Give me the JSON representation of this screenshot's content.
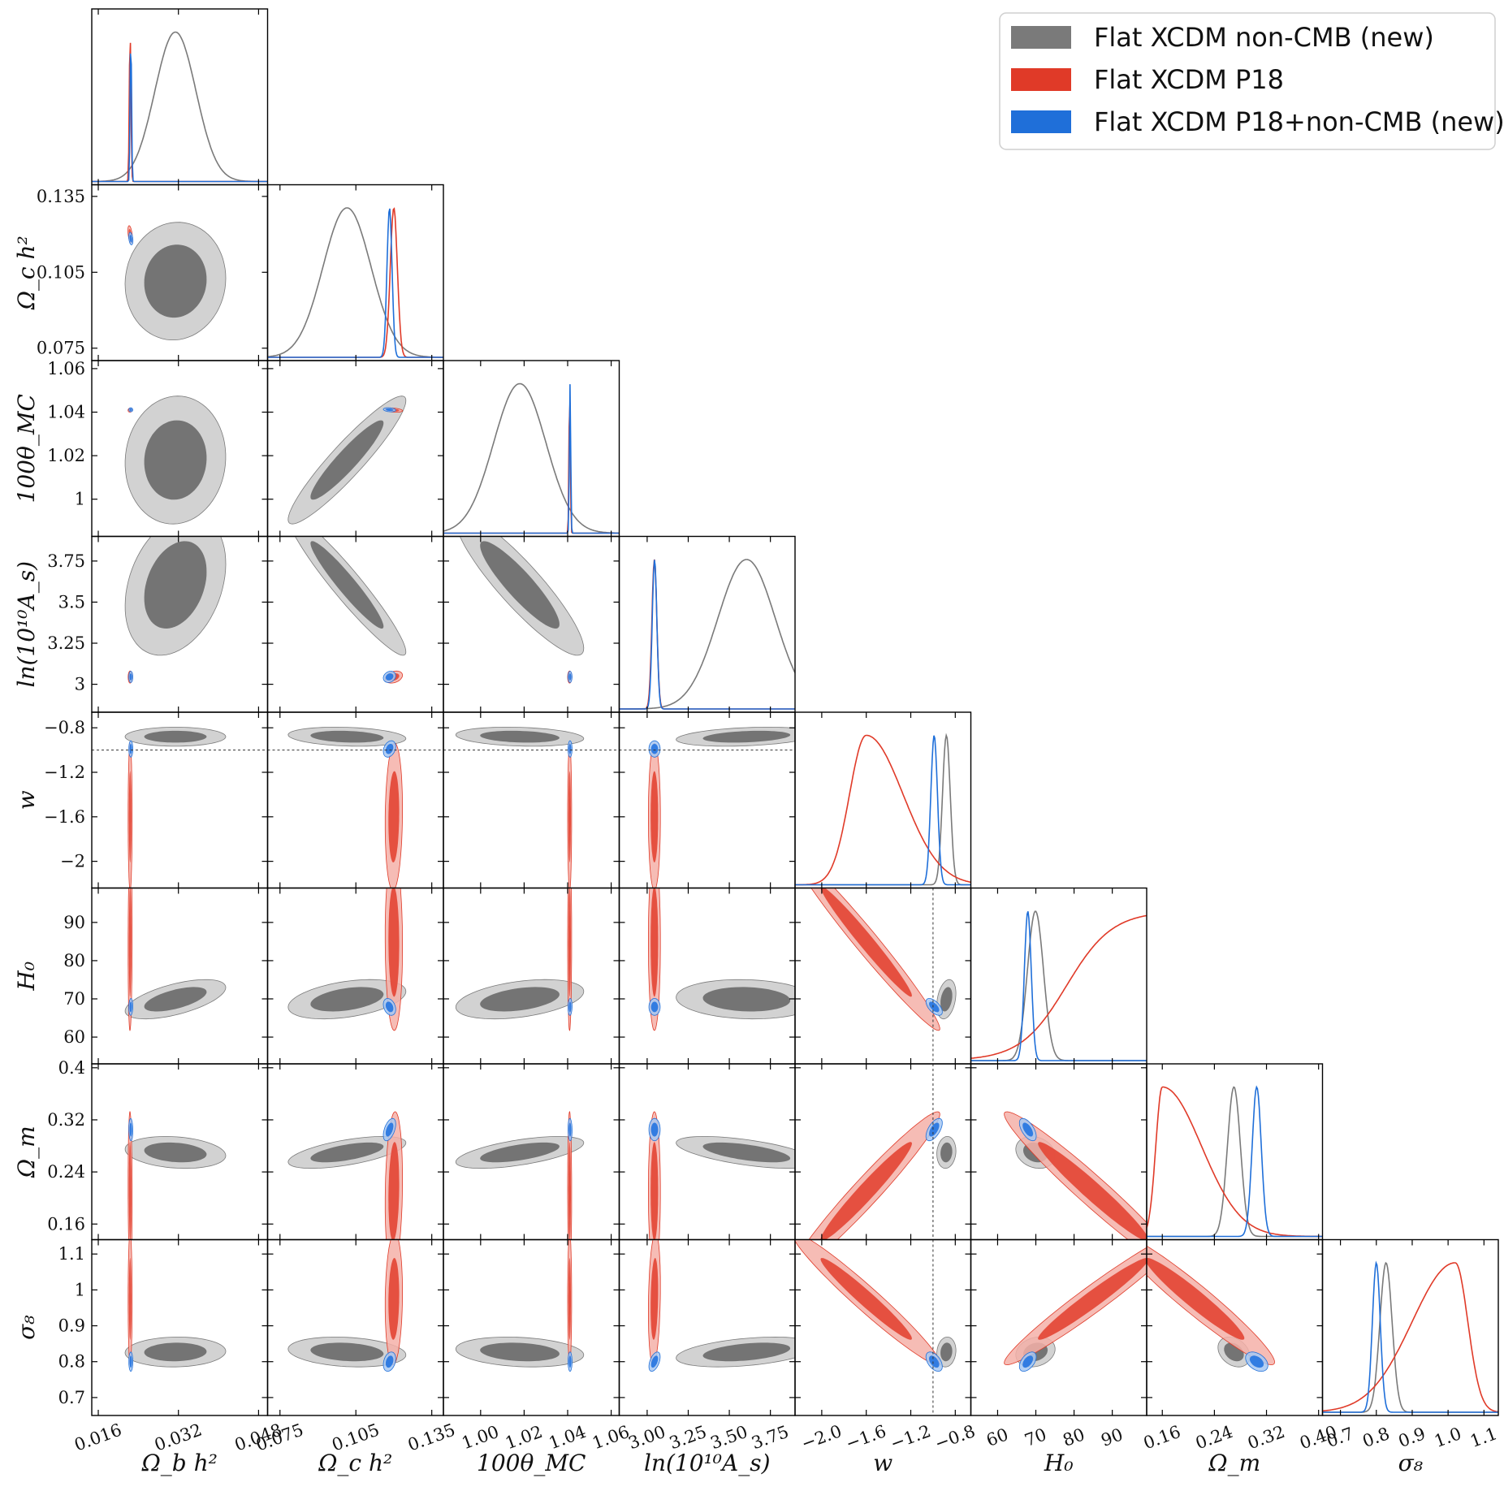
{
  "chart_data": {
    "type": "triangle",
    "title": "",
    "params": [
      {
        "key": "ombh2",
        "label": "Ω_b h²",
        "ticks": [
          0.016,
          0.032,
          0.048
        ],
        "tick_labels": [
          "0.016",
          "0.032",
          "0.048"
        ],
        "lim": [
          0.0147,
          0.0498
        ]
      },
      {
        "key": "omch2",
        "label": "Ω_c h²",
        "ticks": [
          0.075,
          0.105,
          0.135
        ],
        "tick_labels": [
          "0.075",
          "0.105",
          "0.135"
        ],
        "lim": [
          0.0701,
          0.1396
        ]
      },
      {
        "key": "theta",
        "label": "100θ_MC",
        "ticks": [
          1.0,
          1.02,
          1.04,
          1.06
        ],
        "tick_labels": [
          "1.00",
          "1.02",
          "1.04",
          "1.06"
        ],
        "tick_labels_y": [
          "1",
          "1.02",
          "1.04",
          "1.06"
        ],
        "lim": [
          0.9829,
          1.0637
        ]
      },
      {
        "key": "logA",
        "label": "ln(10¹⁰A_s)",
        "ticks": [
          3.0,
          3.25,
          3.5,
          3.75
        ],
        "tick_labels": [
          "3.00",
          "3.25",
          "3.50",
          "3.75"
        ],
        "tick_labels_y": [
          "3",
          "3.25",
          "3.5",
          "3.75"
        ],
        "lim": [
          2.83,
          3.9
        ]
      },
      {
        "key": "w",
        "label": "w",
        "ticks": [
          -2.0,
          -1.6,
          -1.2,
          -0.8
        ],
        "tick_labels": [
          "−2.0",
          "−1.6",
          "−1.2",
          "−0.8"
        ],
        "tick_labels_y": [
          "−2",
          "−1.6",
          "−1.2",
          "−0.8"
        ],
        "lim": [
          -2.24,
          -0.66
        ]
      },
      {
        "key": "H0",
        "label": "H₀",
        "ticks": [
          60,
          70,
          80,
          90
        ],
        "tick_labels": [
          "60",
          "70",
          "80",
          "90"
        ],
        "lim": [
          53,
          99
        ]
      },
      {
        "key": "omm",
        "label": "Ω_m",
        "ticks": [
          0.16,
          0.24,
          0.32,
          0.4
        ],
        "tick_labels": [
          "0.16",
          "0.24",
          "0.32",
          "0.40"
        ],
        "tick_labels_y": [
          "0.16",
          "0.24",
          "0.32",
          "0.4"
        ],
        "lim": [
          0.136,
          0.406
        ]
      },
      {
        "key": "sig8",
        "label": "σ₈",
        "ticks": [
          0.7,
          0.8,
          0.9,
          1.0,
          1.1
        ],
        "tick_labels": [
          "0.7",
          "0.8",
          "0.9",
          "1.0",
          "1.1"
        ],
        "tick_labels_y": [
          "0.7",
          "0.8",
          "0.9",
          "1",
          "1.1"
        ],
        "lim": [
          0.65,
          1.14
        ]
      }
    ],
    "reference_lines": {
      "w": -1.0
    },
    "series": [
      {
        "name": "Flat XCDM non-CMB (new)",
        "color": "#7a7a7a",
        "fill_inner": "#6f6f6f",
        "fill_outer": "#cacaca",
        "mean": {
          "ombh2": 0.0314,
          "omch2": 0.1015,
          "theta": 1.018,
          "logA": 3.605,
          "w": -0.88,
          "H0": 69.9,
          "omm": 0.27,
          "sig8": 0.827
        },
        "sd": {
          "ombh2": 0.0041,
          "omch2": 0.0095,
          "theta": 0.012,
          "logA": 0.175,
          "w": 0.035,
          "H0": 2.1,
          "omm": 0.01,
          "sig8": 0.017
        }
      },
      {
        "name": "Flat XCDM P18",
        "color": "#e03a28",
        "fill_inner": "#e44a3a",
        "fill_outer": "#f4b0a8",
        "mean": {
          "ombh2": 0.02236,
          "omch2": 0.12,
          "theta": 1.04092,
          "logA": 3.044,
          "w": -1.6,
          "H0": 85.0,
          "omm": 0.21,
          "sig8": 0.975
        },
        "sd": {
          "ombh2": 0.00016,
          "omch2": 0.0014,
          "theta": 0.0003,
          "logA": 0.015,
          "w": 0.27,
          "H0": 9.5,
          "omm": 0.05,
          "sig8": 0.075
        }
      },
      {
        "name": "Flat XCDM P18+non-CMB (new)",
        "color": "#1f6fd9",
        "fill_inner": "#2b78e0",
        "fill_outer": "#a7c8f2",
        "mean": {
          "ombh2": 0.0225,
          "omch2": 0.1183,
          "theta": 1.0411,
          "logA": 3.045,
          "w": -0.99,
          "H0": 67.9,
          "omm": 0.305,
          "sig8": 0.8
        },
        "sd": {
          "ombh2": 0.00014,
          "omch2": 0.001,
          "theta": 0.0003,
          "logA": 0.014,
          "w": 0.03,
          "H0": 0.9,
          "omm": 0.007,
          "sig8": 0.011
        }
      }
    ],
    "legend_position": "top-right"
  }
}
